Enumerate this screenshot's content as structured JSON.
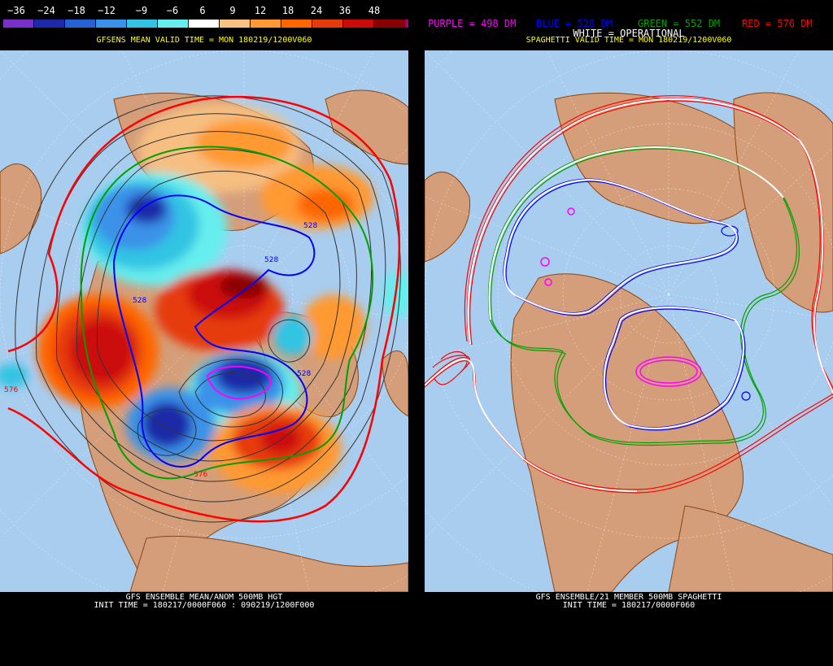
{
  "left": {
    "legend": {
      "labels": [
        "−36",
        "−24",
        "−18",
        "−12",
        "−9",
        "−6",
        "6",
        "9",
        "12",
        "18",
        "24",
        "36",
        "48"
      ],
      "colors": [
        "#7a2fc9",
        "#1b2aa8",
        "#2462d6",
        "#3a92e8",
        "#33c4e3",
        "#66eeee",
        "#ffffff",
        "#f9c282",
        "#ff9933",
        "#ff6600",
        "#e63a0a",
        "#cc0a0a",
        "#8b0000",
        "#a0007a"
      ]
    },
    "valid_time": "GFSENS MEAN VALID TIME = MON 180219/1200V060",
    "footer_line1": "GFS ENSEMBLE MEAN/ANOM 500MB HGT",
    "footer_line2": "INIT TIME = 180217/0000F060 : 090219/1200F000",
    "contour_labels": [
      "528",
      "528",
      "528",
      "528",
      "576",
      "576"
    ]
  },
  "right": {
    "contours": [
      {
        "label": "PURPLE = 498 DM",
        "color": "#ff00ff"
      },
      {
        "label": "BLUE = 528 DM",
        "color": "#0000ff"
      },
      {
        "label": "GREEN = 552 DM",
        "color": "#00a000"
      },
      {
        "label": "RED = 576 DM",
        "color": "#ff0000"
      }
    ],
    "operational": "WHITE = OPERATIONAL",
    "valid_time": "SPAGHETTI VALID TIME = MON 180219/1200V060",
    "footer_line1": "GFS ENSEMBLE/21 MEMBER 500MB SPAGHETTI",
    "footer_line2": "INIT TIME = 180217/0000F060"
  },
  "colors": {
    "ocean": "#a8cdef",
    "land": "#d49e7a",
    "coast": "#8b4513",
    "grid": "#ffffff"
  }
}
